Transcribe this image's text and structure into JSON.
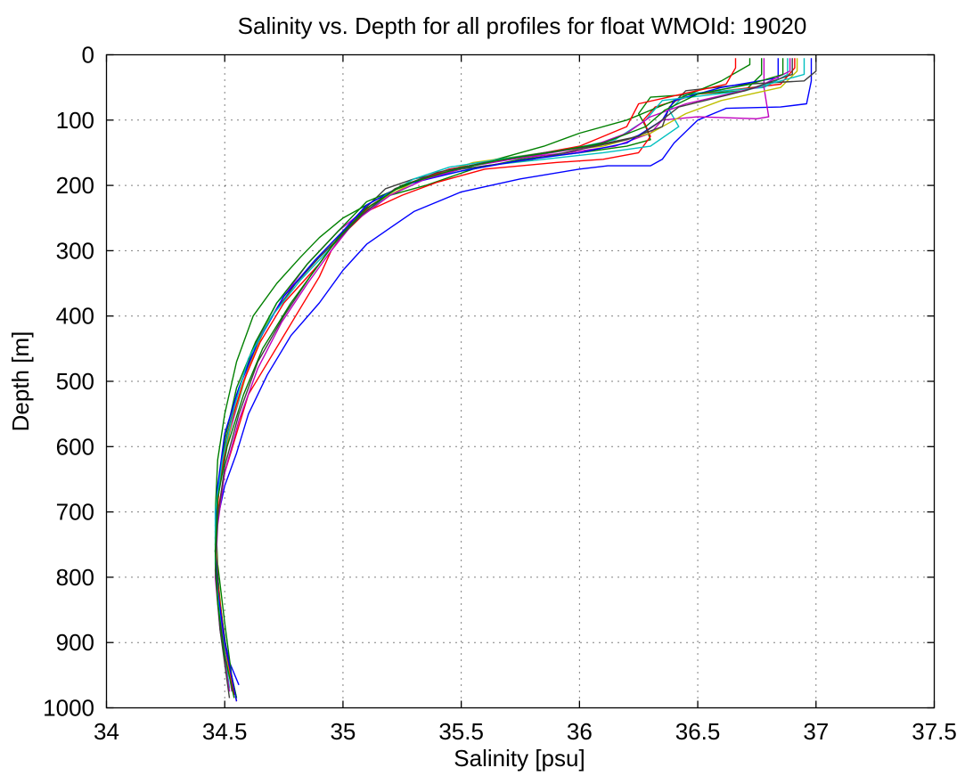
{
  "chart_data": {
    "type": "line",
    "title": "Salinity vs. Depth for all profiles for float WMOId: 19020",
    "xlabel": "Salinity [psu]",
    "ylabel": "Depth [m]",
    "xlim": [
      34,
      37.5
    ],
    "ylim": [
      0,
      1000
    ],
    "y_reversed": true,
    "grid": true,
    "x_ticks": [
      "34",
      "34.5",
      "35",
      "35.5",
      "36",
      "36.5",
      "37",
      "37.5"
    ],
    "y_ticks": [
      "0",
      "100",
      "200",
      "300",
      "400",
      "500",
      "600",
      "700",
      "800",
      "900",
      "1000"
    ],
    "series_colors": [
      "#0000ff",
      "#008000",
      "#ff0000",
      "#00bfbf",
      "#bf00bf",
      "#bfbf00",
      "#404040"
    ],
    "series": [
      {
        "color": "#0000ff",
        "x": [
          36.98,
          36.98,
          36.96,
          36.85,
          36.62,
          36.5,
          36.4,
          36.35,
          36.3,
          36.12,
          36.0,
          35.75,
          35.5,
          35.3,
          35.2,
          35.1,
          35.0,
          34.9,
          34.78,
          34.68,
          34.6,
          34.55,
          34.5,
          34.47,
          34.46,
          34.47,
          34.49,
          34.52,
          34.56
        ],
        "y": [
          5,
          40,
          75,
          80,
          82,
          100,
          135,
          160,
          170,
          170,
          175,
          190,
          210,
          240,
          265,
          290,
          330,
          380,
          430,
          490,
          550,
          610,
          660,
          710,
          760,
          820,
          880,
          930,
          965
        ]
      },
      {
        "color": "#008000",
        "x": [
          36.77,
          36.77,
          36.7,
          36.3,
          36.25,
          36.28,
          36.3,
          36.2,
          36.0,
          35.75,
          35.55,
          35.35,
          35.15,
          35.0,
          34.9,
          34.82,
          34.72,
          34.62,
          34.55,
          34.5,
          34.47,
          34.46,
          34.47,
          34.5,
          34.54
        ],
        "y": [
          5,
          30,
          55,
          65,
          90,
          110,
          130,
          140,
          150,
          160,
          175,
          200,
          220,
          250,
          280,
          310,
          350,
          400,
          470,
          550,
          620,
          700,
          780,
          870,
          980
        ]
      },
      {
        "color": "#ff0000",
        "x": [
          36.91,
          36.91,
          36.85,
          36.5,
          36.32,
          36.27,
          36.3,
          36.25,
          36.1,
          35.9,
          35.6,
          35.4,
          35.25,
          35.1,
          35.0,
          34.95,
          34.9,
          34.8,
          34.7,
          34.6,
          34.55,
          34.5,
          34.47,
          34.46,
          34.47,
          34.5,
          34.55
        ],
        "y": [
          5,
          20,
          45,
          60,
          80,
          100,
          125,
          150,
          160,
          165,
          175,
          195,
          215,
          240,
          275,
          300,
          340,
          400,
          460,
          520,
          580,
          640,
          700,
          760,
          830,
          900,
          990
        ]
      },
      {
        "color": "#00bfbf",
        "x": [
          36.88,
          36.88,
          36.78,
          36.45,
          36.38,
          36.42,
          36.3,
          36.1,
          35.9,
          35.6,
          35.35,
          35.2,
          35.05,
          34.95,
          34.85,
          34.72,
          34.62,
          34.56,
          34.5,
          34.47,
          34.46,
          34.48,
          34.52
        ],
        "y": [
          5,
          30,
          50,
          60,
          85,
          110,
          140,
          150,
          158,
          170,
          190,
          215,
          250,
          290,
          330,
          380,
          450,
          530,
          600,
          680,
          760,
          860,
          970
        ]
      },
      {
        "color": "#bf00bf",
        "x": [
          36.78,
          36.78,
          36.8,
          36.75,
          36.5,
          36.35,
          36.3,
          36.15,
          35.95,
          35.7,
          35.45,
          35.25,
          35.1,
          34.98,
          34.85,
          34.75,
          34.65,
          34.58,
          34.52,
          34.48,
          34.46,
          34.47,
          34.49,
          34.53
        ],
        "y": [
          5,
          50,
          95,
          98,
          95,
          100,
          120,
          140,
          150,
          160,
          175,
          200,
          235,
          270,
          320,
          370,
          430,
          500,
          580,
          650,
          720,
          800,
          880,
          975
        ]
      },
      {
        "color": "#bfbf00",
        "x": [
          36.92,
          36.92,
          36.85,
          36.6,
          36.45,
          36.3,
          36.1,
          35.85,
          35.55,
          35.3,
          35.12,
          35.0,
          34.9,
          34.8,
          34.68,
          34.6,
          34.53,
          34.49,
          34.46,
          34.47,
          34.5,
          34.53
        ],
        "y": [
          5,
          25,
          50,
          70,
          90,
          120,
          140,
          150,
          165,
          195,
          230,
          270,
          310,
          350,
          410,
          480,
          560,
          630,
          710,
          800,
          900,
          970
        ]
      },
      {
        "color": "#404040",
        "x": [
          37.0,
          37.0,
          36.95,
          36.7,
          36.45,
          36.38,
          36.35,
          36.2,
          36.0,
          35.8,
          35.5,
          35.3,
          35.18,
          35.08,
          35.0,
          34.9,
          34.8,
          34.7,
          34.62,
          34.55,
          34.5,
          34.47,
          34.46,
          34.48,
          34.51,
          34.55
        ],
        "y": [
          5,
          25,
          40,
          45,
          55,
          80,
          110,
          130,
          145,
          160,
          175,
          190,
          205,
          240,
          275,
          310,
          350,
          400,
          450,
          520,
          600,
          680,
          760,
          840,
          920,
          985
        ]
      },
      {
        "color": "#008000",
        "x": [
          36.72,
          36.72,
          36.6,
          36.2,
          36.0,
          35.85,
          35.65,
          35.5,
          35.3,
          35.1,
          34.98,
          34.85,
          34.72,
          34.63,
          34.55,
          34.5,
          34.47,
          34.46,
          34.48,
          34.51,
          34.55
        ],
        "y": [
          5,
          15,
          40,
          100,
          120,
          140,
          160,
          175,
          195,
          225,
          270,
          320,
          380,
          440,
          510,
          590,
          670,
          750,
          840,
          920,
          985
        ]
      },
      {
        "color": "#ff0000",
        "x": [
          36.66,
          36.66,
          36.62,
          36.25,
          36.2,
          36.0,
          35.7,
          35.45,
          35.25,
          35.12,
          35.0,
          34.9,
          34.75,
          34.65,
          34.58,
          34.52,
          34.48,
          34.46,
          34.47,
          34.5,
          34.54
        ],
        "y": [
          5,
          20,
          45,
          75,
          110,
          140,
          160,
          175,
          200,
          230,
          270,
          320,
          380,
          440,
          500,
          570,
          650,
          730,
          810,
          900,
          980
        ]
      },
      {
        "color": "#0000ff",
        "x": [
          36.84,
          36.84,
          36.6,
          36.4,
          36.35,
          36.2,
          36.0,
          35.75,
          35.5,
          35.25,
          35.1,
          35.0,
          34.88,
          34.75,
          34.64,
          34.56,
          34.5,
          34.47,
          34.46,
          34.47,
          34.5,
          34.55
        ],
        "y": [
          5,
          35,
          50,
          70,
          100,
          135,
          150,
          162,
          178,
          200,
          230,
          270,
          315,
          370,
          440,
          510,
          580,
          660,
          740,
          820,
          900,
          990
        ]
      },
      {
        "color": "#00bfbf",
        "x": [
          36.95,
          36.95,
          36.7,
          36.35,
          36.28,
          36.15,
          35.95,
          35.7,
          35.45,
          35.3,
          35.18,
          35.05,
          34.95,
          34.82,
          34.7,
          34.6,
          34.54,
          34.49,
          34.46,
          34.46,
          34.48,
          34.52
        ],
        "y": [
          5,
          30,
          55,
          70,
          100,
          130,
          145,
          158,
          172,
          190,
          215,
          255,
          295,
          345,
          400,
          465,
          540,
          620,
          700,
          780,
          870,
          975
        ]
      },
      {
        "color": "#bf00bf",
        "x": [
          36.89,
          36.89,
          36.75,
          36.45,
          36.3,
          36.2,
          36.05,
          35.8,
          35.55,
          35.35,
          35.2,
          35.05,
          34.95,
          34.85,
          34.74,
          34.64,
          34.56,
          34.5,
          34.47,
          34.46,
          34.48,
          34.52
        ],
        "y": [
          5,
          25,
          50,
          75,
          95,
          120,
          140,
          155,
          170,
          190,
          215,
          255,
          300,
          350,
          410,
          480,
          560,
          640,
          720,
          800,
          880,
          975
        ]
      },
      {
        "color": "#404040",
        "x": [
          36.9,
          36.9,
          36.7,
          36.42,
          36.33,
          36.25,
          36.05,
          35.85,
          35.6,
          35.4,
          35.22,
          35.08,
          34.96,
          34.86,
          34.75,
          34.64,
          34.56,
          34.5,
          34.47,
          34.46,
          34.48,
          34.52
        ],
        "y": [
          5,
          30,
          55,
          80,
          105,
          125,
          140,
          150,
          165,
          180,
          205,
          245,
          290,
          340,
          400,
          470,
          550,
          630,
          710,
          790,
          880,
          985
        ]
      },
      {
        "color": "#008000",
        "x": [
          36.86,
          36.86,
          36.72,
          36.5,
          36.36,
          36.28,
          36.1,
          35.9,
          35.65,
          35.45,
          35.25,
          35.1,
          34.98,
          34.88,
          34.78,
          34.66,
          34.58,
          34.51,
          34.47,
          34.46,
          34.47,
          34.5,
          34.54
        ],
        "y": [
          5,
          30,
          45,
          60,
          85,
          110,
          135,
          148,
          162,
          178,
          200,
          235,
          280,
          330,
          380,
          450,
          520,
          600,
          680,
          760,
          840,
          920,
          985
        ]
      }
    ]
  }
}
